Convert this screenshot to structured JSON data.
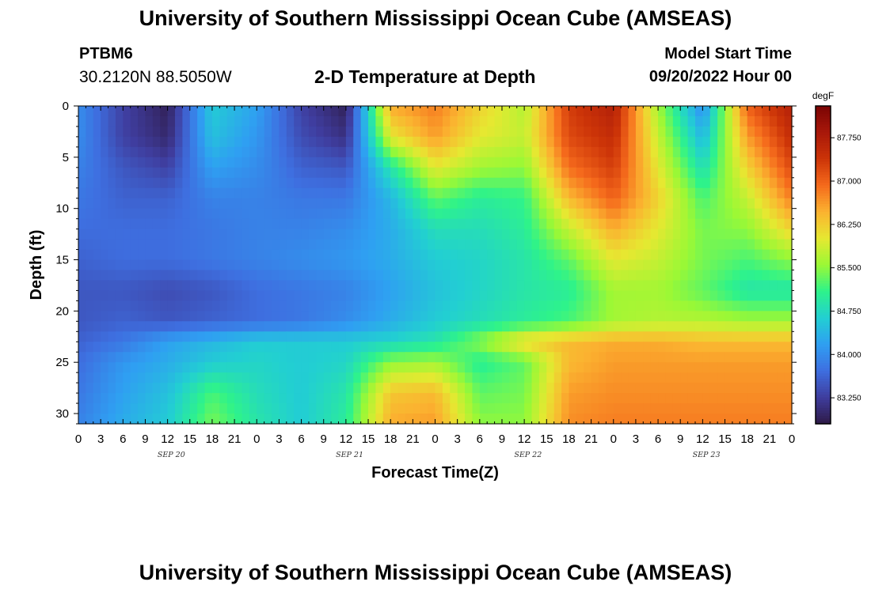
{
  "header": {
    "title": "University of Southern Mississippi Ocean Cube (AMSEAS)",
    "station_id": "PTBM6",
    "station_coords": "30.2120N  88.5050W",
    "plot_title": "2-D Temperature at Depth",
    "model_start_label": "Model Start Time",
    "model_start_value": "09/20/2022 Hour 00"
  },
  "footer": {
    "title": "University of Southern Mississippi Ocean Cube (AMSEAS)"
  },
  "chart_data": {
    "type": "heatmap",
    "title": "2-D Temperature at Depth",
    "xlabel": "Forecast Time(Z)",
    "ylabel": "Depth (ft)",
    "x_tick_labels": [
      "0",
      "3",
      "6",
      "9",
      "12",
      "15",
      "18",
      "21",
      "0",
      "3",
      "6",
      "9",
      "12",
      "15",
      "18",
      "21",
      "0",
      "3",
      "6",
      "9",
      "12",
      "15",
      "18",
      "21",
      "0",
      "3",
      "6",
      "9",
      "12",
      "15",
      "18",
      "21",
      "0"
    ],
    "date_labels": [
      "SEP 20",
      "SEP 21",
      "SEP 22",
      "SEP 23"
    ],
    "y_ticks": [
      0,
      5,
      10,
      15,
      20,
      25,
      30
    ],
    "ylim": [
      0,
      31
    ],
    "xlim_hours": [
      0,
      96
    ],
    "colorbar": {
      "unit": "degF",
      "ticks": [
        "83.250",
        "84.000",
        "84.750",
        "85.500",
        "86.250",
        "87.000",
        "87.750"
      ],
      "range": [
        82.8,
        88.3
      ],
      "colors": [
        "#2e1a47",
        "#3f3d9e",
        "#3e6fe0",
        "#2f9ff2",
        "#22cfd2",
        "#2ef38a",
        "#9bf835",
        "#e6e831",
        "#fbb230",
        "#f56a1c",
        "#cc3408",
        "#a8180a",
        "#7a0404"
      ]
    },
    "depth_levels": [
      0,
      3,
      6,
      9,
      12,
      15,
      18,
      21,
      23,
      25,
      28,
      31
    ],
    "time_hours": [
      0,
      6,
      12,
      18,
      24,
      30,
      36,
      42,
      48,
      54,
      60,
      66,
      72,
      78,
      84,
      90,
      96
    ],
    "temperature": [
      [
        84.0,
        83.3,
        82.9,
        84.6,
        84.2,
        83.3,
        82.9,
        86.5,
        86.8,
        86.2,
        85.7,
        87.3,
        87.7,
        85.6,
        84.0,
        87.0,
        87.7
      ],
      [
        84.0,
        83.3,
        83.0,
        84.5,
        84.1,
        83.4,
        83.1,
        86.0,
        86.6,
        86.0,
        85.8,
        87.2,
        87.5,
        85.8,
        84.4,
        86.6,
        87.5
      ],
      [
        83.9,
        83.5,
        83.3,
        84.2,
        84.0,
        83.6,
        83.5,
        84.9,
        86.0,
        85.6,
        85.5,
        86.9,
        87.3,
        86.0,
        84.8,
        86.2,
        87.2
      ],
      [
        83.8,
        83.6,
        83.6,
        83.9,
        83.9,
        83.8,
        83.8,
        84.4,
        85.3,
        85.0,
        85.1,
        86.4,
        87.0,
        86.2,
        85.2,
        85.8,
        86.8
      ],
      [
        83.7,
        83.7,
        83.7,
        83.8,
        83.9,
        83.9,
        84.0,
        84.3,
        84.8,
        84.8,
        85.0,
        85.8,
        86.5,
        86.0,
        85.4,
        85.5,
        86.2
      ],
      [
        83.6,
        83.7,
        83.7,
        83.8,
        83.9,
        84.0,
        84.1,
        84.3,
        84.6,
        84.7,
        84.9,
        85.3,
        86.0,
        85.8,
        85.4,
        85.2,
        85.5
      ],
      [
        83.5,
        83.5,
        83.4,
        83.5,
        83.7,
        83.8,
        83.9,
        84.2,
        84.5,
        84.7,
        84.9,
        85.0,
        85.6,
        85.6,
        85.3,
        84.9,
        84.9
      ],
      [
        83.5,
        83.6,
        83.5,
        83.6,
        83.7,
        83.8,
        84.0,
        84.3,
        84.6,
        84.8,
        85.0,
        85.2,
        85.6,
        85.7,
        85.7,
        85.6,
        85.6
      ],
      [
        83.6,
        83.8,
        84.2,
        84.4,
        84.6,
        84.6,
        84.6,
        84.7,
        84.9,
        85.5,
        86.2,
        86.4,
        86.5,
        86.5,
        86.4,
        86.4,
        86.4
      ],
      [
        83.7,
        84.1,
        84.3,
        84.6,
        84.7,
        84.6,
        84.7,
        85.5,
        85.6,
        85.0,
        85.3,
        86.4,
        86.6,
        86.6,
        86.6,
        86.6,
        86.6
      ],
      [
        83.8,
        84.2,
        84.5,
        85.2,
        84.8,
        84.6,
        84.9,
        86.3,
        86.4,
        85.3,
        85.4,
        86.6,
        86.7,
        86.7,
        86.7,
        86.7,
        86.7
      ],
      [
        83.9,
        84.3,
        84.6,
        85.4,
        84.9,
        84.6,
        85.0,
        86.5,
        86.6,
        85.5,
        85.5,
        86.7,
        86.8,
        86.8,
        86.8,
        86.8,
        86.8
      ]
    ]
  }
}
